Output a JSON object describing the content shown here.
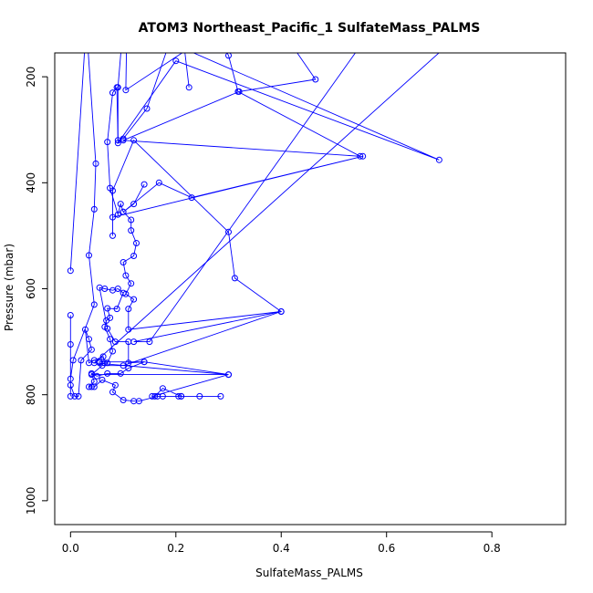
{
  "chart_data": {
    "type": "line",
    "title": "ATOM3 Northeast_Pacific_1 SulfateMass_PALMS",
    "xlabel": "SulfateMass_PALMS",
    "ylabel": "Pressure (mbar)",
    "xlim": [
      -0.03,
      0.94
    ],
    "ylim": [
      1045,
      155
    ],
    "y_reversed": true,
    "x_ticks": [
      0.0,
      0.2,
      0.4,
      0.6,
      0.8
    ],
    "x_tick_labels": [
      "0.0",
      "0.2",
      "0.4",
      "0.6",
      "0.8"
    ],
    "y_ticks": [
      200,
      400,
      600,
      800,
      1000
    ],
    "y_tick_labels": [
      "200",
      "400",
      "600",
      "800",
      "1000"
    ],
    "grid": false,
    "series": [
      {
        "color": "#0000ff",
        "marker": "open-circle",
        "points": [
          [
            0.0,
            566
          ],
          [
            0.03,
            100
          ],
          [
            0.048,
            364
          ],
          [
            0.045,
            450
          ],
          [
            0.035,
            537
          ],
          [
            0.045,
            630
          ],
          [
            0.005,
            735
          ],
          [
            0.0,
            770
          ],
          [
            0.0,
            803
          ],
          [
            0.0,
            705
          ],
          [
            0.0,
            650
          ],
          [
            0.0,
            782
          ],
          [
            0.008,
            803
          ],
          [
            0.015,
            803
          ],
          [
            0.02,
            735
          ],
          [
            0.04,
            715
          ],
          [
            0.035,
            695
          ],
          [
            0.028,
            677
          ],
          [
            0.035,
            740
          ],
          [
            0.045,
            735
          ],
          [
            0.062,
            728
          ],
          [
            0.065,
            740
          ],
          [
            0.07,
            740
          ],
          [
            0.08,
            718
          ],
          [
            0.075,
            695
          ],
          [
            0.065,
            672
          ],
          [
            0.068,
            660
          ],
          [
            0.075,
            655
          ],
          [
            0.07,
            637
          ],
          [
            0.088,
            638
          ],
          [
            0.1,
            608
          ],
          [
            0.09,
            600
          ],
          [
            0.08,
            603
          ],
          [
            0.065,
            600
          ],
          [
            0.055,
            598
          ],
          [
            0.07,
            675
          ],
          [
            0.085,
            700
          ],
          [
            0.11,
            700
          ],
          [
            0.11,
            740
          ],
          [
            0.14,
            738
          ],
          [
            0.11,
            750
          ],
          [
            0.095,
            760
          ],
          [
            0.07,
            760
          ],
          [
            0.05,
            765
          ],
          [
            0.04,
            760
          ],
          [
            0.045,
            775
          ],
          [
            0.035,
            785
          ],
          [
            0.04,
            785
          ],
          [
            0.045,
            785
          ],
          [
            0.06,
            772
          ],
          [
            0.085,
            782
          ],
          [
            0.08,
            795
          ],
          [
            0.1,
            810
          ],
          [
            0.12,
            812
          ],
          [
            0.13,
            812
          ],
          [
            0.165,
            803
          ],
          [
            0.175,
            803
          ],
          [
            0.205,
            803
          ],
          [
            0.21,
            803
          ],
          [
            0.245,
            803
          ],
          [
            0.285,
            803
          ],
          [
            0.21,
            803
          ],
          [
            0.175,
            788
          ],
          [
            0.16,
            803
          ],
          [
            0.155,
            803
          ],
          [
            0.3,
            762
          ],
          [
            0.04,
            762
          ],
          [
            0.06,
            745
          ],
          [
            0.1,
            745
          ],
          [
            0.4,
            643
          ],
          [
            0.11,
            677
          ],
          [
            0.11,
            638
          ],
          [
            0.12,
            620
          ],
          [
            0.105,
            610
          ],
          [
            0.115,
            590
          ],
          [
            0.105,
            575
          ],
          [
            0.1,
            550
          ],
          [
            0.12,
            538
          ],
          [
            0.125,
            514
          ],
          [
            0.115,
            490
          ],
          [
            0.115,
            470
          ],
          [
            0.1,
            455
          ],
          [
            0.095,
            440
          ],
          [
            0.09,
            460
          ],
          [
            0.075,
            410
          ],
          [
            0.07,
            323
          ],
          [
            0.08,
            230
          ],
          [
            0.088,
            220
          ],
          [
            0.09,
            320
          ],
          [
            0.1,
            317
          ],
          [
            0.145,
            260
          ],
          [
            0.2,
            100
          ],
          [
            0.18,
            70
          ],
          [
            0.1,
            40
          ],
          [
            0.0,
            100
          ]
        ]
      },
      {
        "color": "#0000ff",
        "marker": "open-circle",
        "points": [
          [
            0.225,
            220
          ],
          [
            0.2,
            10
          ],
          [
            0.25,
            60
          ],
          [
            0.3,
            160
          ],
          [
            0.318,
            228
          ],
          [
            0.55,
            350
          ],
          [
            0.1,
            320
          ],
          [
            0.32,
            228
          ],
          [
            0.465,
            205
          ],
          [
            0.42,
            140
          ],
          [
            0.35,
            20
          ],
          [
            0.25,
            130
          ],
          [
            0.105,
            225
          ],
          [
            0.107,
            100
          ],
          [
            0.7,
            357
          ],
          [
            0.2,
            170
          ],
          [
            0.09,
            325
          ],
          [
            0.09,
            220
          ],
          [
            0.1,
            100
          ]
        ]
      },
      {
        "color": "#0000ff",
        "marker": "open-circle",
        "points": [
          [
            0.14,
            403
          ],
          [
            0.12,
            440
          ],
          [
            0.1,
            455
          ],
          [
            0.168,
            400
          ],
          [
            0.23,
            428
          ],
          [
            0.555,
            350
          ],
          [
            0.08,
            465
          ],
          [
            0.08,
            500
          ],
          [
            0.08,
            415
          ],
          [
            0.12,
            320
          ],
          [
            0.3,
            493
          ],
          [
            0.312,
            580
          ],
          [
            0.4,
            643
          ],
          [
            0.12,
            700
          ],
          [
            0.15,
            700
          ],
          [
            0.58,
            100
          ]
        ]
      },
      {
        "color": "#0000ff",
        "marker": "open-circle",
        "points": [
          [
            0.055,
            740
          ],
          [
            0.055,
            738
          ],
          [
            0.14,
            738
          ],
          [
            0.3,
            762
          ],
          [
            0.045,
            740
          ],
          [
            0.705,
            150
          ],
          [
            0.7,
            100
          ]
        ]
      }
    ]
  }
}
